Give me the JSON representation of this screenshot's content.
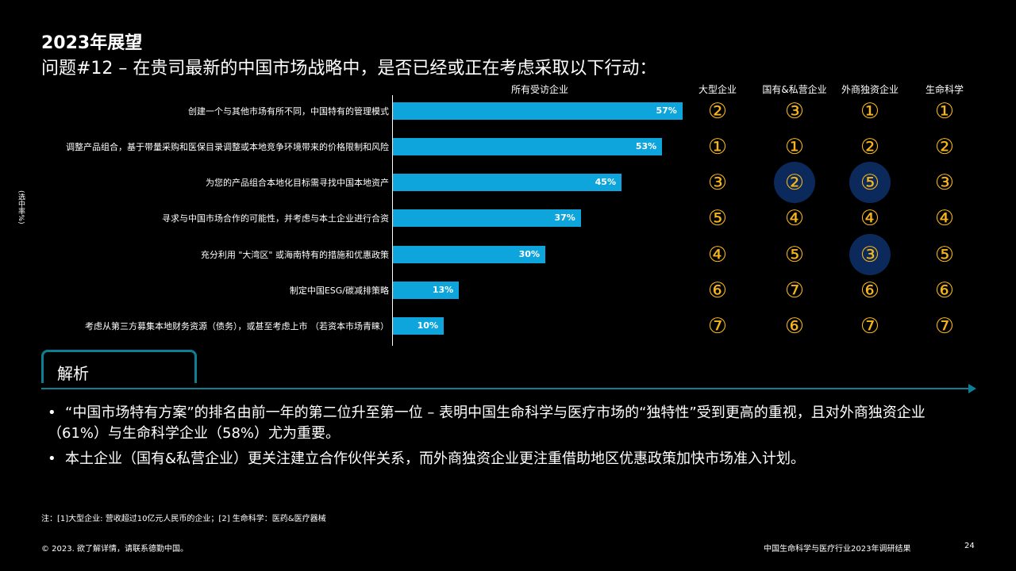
{
  "header": {
    "title": "2023年展望",
    "subtitle": "问题#12 – 在贵司最新的中国市场战略中，是否已经或正在考虑采取以下行动："
  },
  "y_axis_note": "(选中率%)",
  "columns": [
    "所有受访企业",
    "大型企业",
    "国有&私营企业",
    "外商独资企业",
    "生命科学"
  ],
  "chart_data": {
    "type": "bar",
    "orientation": "horizontal",
    "categories": [
      "创建一个与其他市场有所不同，中国特有的管理模式",
      "调整产品组合，基于带量采购和医保目录调整或本地竞争环境带来的价格限制和风险",
      "为您的产品组合本地化目标需寻找中国本地资产",
      "寻求与中国市场合作的可能性，并考虑与本土企业进行合资",
      "充分利用 \"大湾区\" 或海南特有的措施和优惠政策",
      "制定中国ESG/碳减排策略",
      "考虑从第三方募集本地财务资源（债务），或甚至考虑上市 （若资本市场青睐）"
    ],
    "series": [
      {
        "name": "所有受访企业",
        "values": [
          57,
          53,
          45,
          37,
          30,
          13,
          10
        ]
      }
    ],
    "value_labels": [
      "57%",
      "53%",
      "45%",
      "37%",
      "30%",
      "13%",
      "10%"
    ],
    "xlim": [
      0,
      100
    ],
    "bar_color": "#0ea5dc"
  },
  "rank_table": {
    "groups": [
      "大型企业",
      "国有&私营企业",
      "外商独资企业",
      "生命科学"
    ],
    "rows": [
      [
        "②",
        "③",
        "①",
        "①"
      ],
      [
        "①",
        "①",
        "②",
        "②"
      ],
      [
        "③",
        "②",
        "⑤",
        "③"
      ],
      [
        "⑤",
        "④",
        "④",
        "④"
      ],
      [
        "④",
        "⑤",
        "③",
        "⑤"
      ],
      [
        "⑥",
        "⑦",
        "⑥",
        "⑥"
      ],
      [
        "⑦",
        "⑥",
        "⑦",
        "⑦"
      ]
    ],
    "highlighted": [
      [
        2,
        1
      ],
      [
        2,
        2
      ],
      [
        4,
        2
      ]
    ],
    "rank_color": "#f6b51a",
    "highlight_color": "#0b2a5b"
  },
  "analysis": {
    "title": "解析",
    "bullets": [
      "“中国市场特有方案”的排名由前一年的第二位升至第一位 – 表明中国生命科学与医疗市场的“独特性”受到更高的重视，且对外商独资企业（61%）与生命科学企业（58%）尤为重要。",
      "本土企业（国有&私营企业）更关注建立合作伙伴关系，而外商独资企业更注重借助地区优惠政策加快市场准入计划。"
    ]
  },
  "footer": {
    "note": "注：[1]大型企业: 营收超过10亿元人民币的企业；[2] 生命科学：医药&医疗器械",
    "copyright": "© 2023. 欲了解详情，请联系德勤中国。",
    "report_title": "中国生命科学与医疗行业2023年调研结果",
    "page_number": "24"
  }
}
